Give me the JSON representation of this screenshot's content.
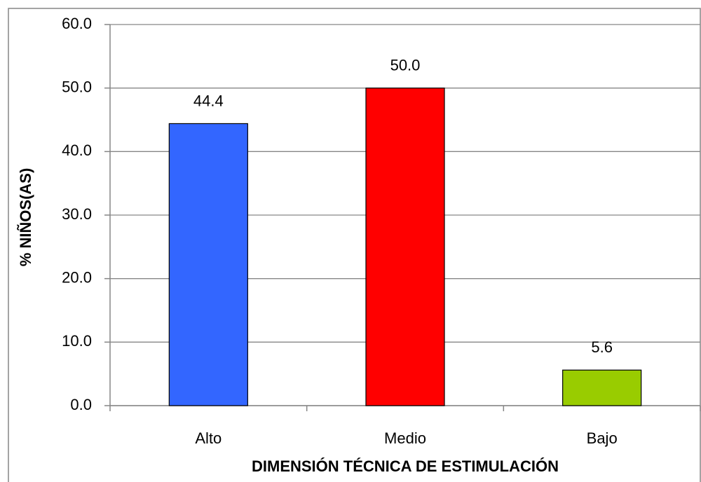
{
  "chart_data": {
    "type": "bar",
    "x_label": "DIMENSIÓN TÉCNICA DE ESTIMULACIÓN",
    "y_label": "% NIÑOS(AS)",
    "categories": [
      "Alto",
      "Medio",
      "Bajo"
    ],
    "values": [
      44.4,
      50.0,
      5.6
    ],
    "value_labels": [
      "44.4",
      "50.0",
      "5.6"
    ],
    "colors": [
      "#3366ff",
      "#ff0000",
      "#99cc00"
    ],
    "ylim": [
      0,
      60
    ],
    "yticks": [
      {
        "value": 0,
        "label": "0.0"
      },
      {
        "value": 10,
        "label": "10.0"
      },
      {
        "value": 20,
        "label": "20.0"
      },
      {
        "value": 30,
        "label": "30.0"
      },
      {
        "value": 40,
        "label": "40.0"
      },
      {
        "value": 50,
        "label": "50.0"
      },
      {
        "value": 60,
        "label": "60.0"
      }
    ],
    "grid": true
  }
}
